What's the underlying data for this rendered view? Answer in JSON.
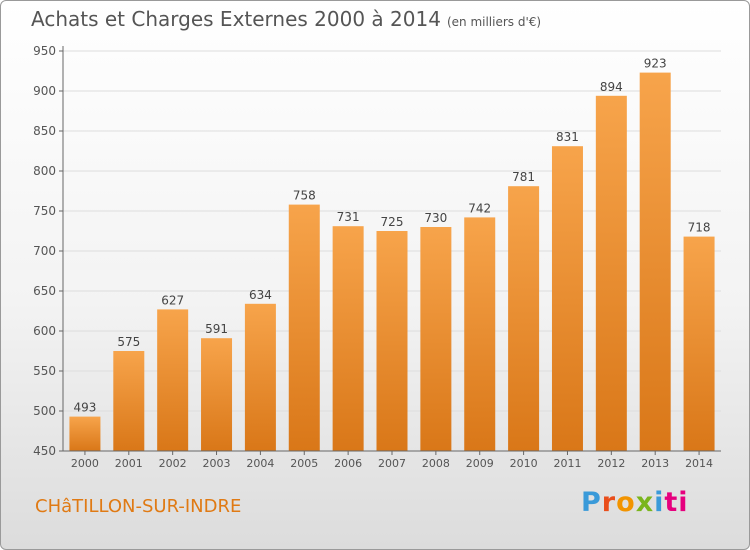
{
  "header": {
    "title": "Achats et Charges Externes 2000 à 2014",
    "subtitle": "(en milliers d'€)"
  },
  "footer": {
    "town": "CHâTILLON-SUR-INDRE",
    "brand": "Proxiti"
  },
  "colors": {
    "bar_top": "#f7a44b",
    "bar_bottom": "#d97718",
    "axis": "#666666",
    "grid": "#dddddd",
    "town": "#e07a14"
  },
  "chart_data": {
    "type": "bar",
    "title": "Achats et Charges Externes 2000 à 2014",
    "subtitle": "(en milliers d'€)",
    "xlabel": "",
    "ylabel": "",
    "categories": [
      "2000",
      "2001",
      "2002",
      "2003",
      "2004",
      "2005",
      "2006",
      "2007",
      "2008",
      "2009",
      "2010",
      "2011",
      "2012",
      "2013",
      "2014"
    ],
    "values": [
      493,
      575,
      627,
      591,
      634,
      758,
      731,
      725,
      730,
      742,
      781,
      831,
      894,
      923,
      718
    ],
    "ylim": [
      450,
      950
    ],
    "yticks": [
      450,
      500,
      550,
      600,
      650,
      700,
      750,
      800,
      850,
      900,
      950
    ],
    "grid": true,
    "legend": "none"
  }
}
